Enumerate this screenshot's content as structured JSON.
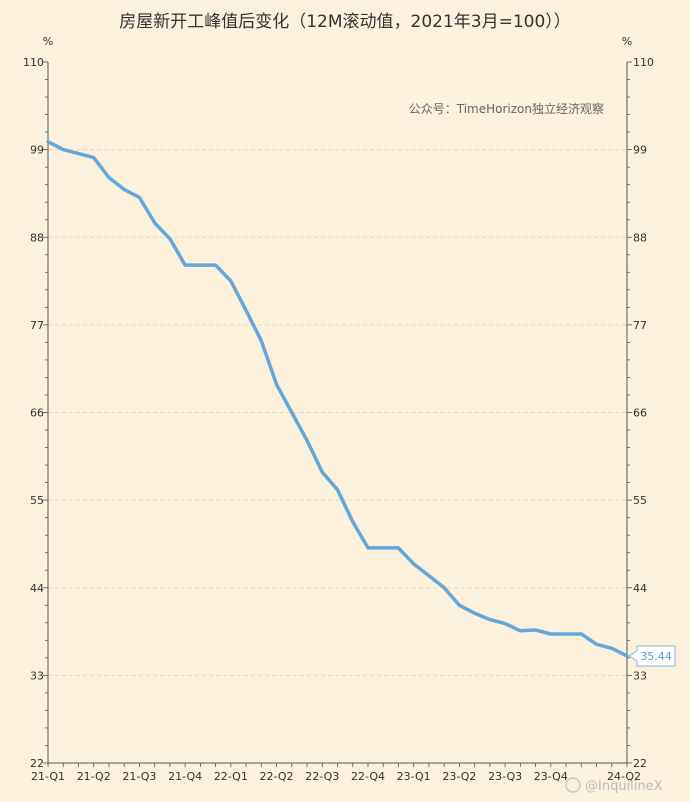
{
  "chart_data": {
    "type": "line",
    "title": "房屋新开工峰值后变化（12M滚动值，2021年3月=100））",
    "ylabel_left": "%",
    "ylabel_right": "%",
    "ylim": [
      22,
      110
    ],
    "yticks": [
      22,
      33,
      44,
      55,
      66,
      77,
      88,
      99,
      110
    ],
    "x_tick_labels": [
      "21-Q1",
      "21-Q2",
      "21-Q3",
      "21-Q4",
      "22-Q1",
      "22-Q2",
      "22-Q3",
      "22-Q4",
      "23-Q1",
      "23-Q2",
      "23-Q3",
      "23-Q4",
      "24-Q2"
    ],
    "x_tick_positions": [
      0,
      3,
      6,
      9,
      12,
      15,
      18,
      21,
      24,
      27,
      30,
      33,
      38
    ],
    "x_max": 38,
    "series": [
      {
        "color": "#63a8d8",
        "values": [
          100.0,
          99.0,
          98.5,
          98.0,
          95.5,
          94.0,
          93.0,
          89.8,
          87.8,
          84.5,
          84.5,
          84.5,
          82.5,
          78.8,
          75.0,
          69.5,
          66.0,
          62.5,
          58.5,
          56.3,
          52.3,
          49.0,
          49.0,
          49.0,
          47.0,
          45.5,
          44.0,
          41.8,
          40.8,
          40.0,
          39.5,
          38.6,
          38.7,
          38.2,
          38.2,
          38.2,
          36.9,
          36.4,
          35.44
        ]
      }
    ],
    "end_value_label": "35.44",
    "grid": "horizontal-dashed",
    "watermark": "公众号：TimeHorizon独立经济观察",
    "weibo_watermark": "@InquilineX"
  }
}
